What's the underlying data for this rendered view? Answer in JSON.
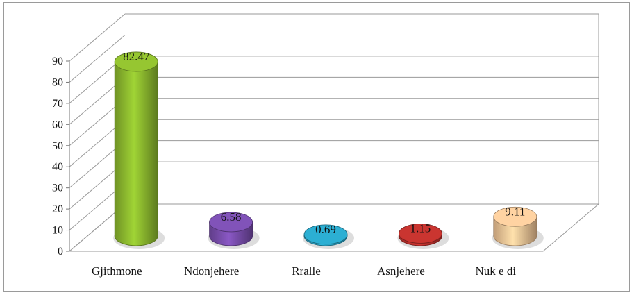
{
  "chart_data": {
    "type": "bar",
    "style": "3d-cylinder",
    "title": "",
    "xlabel": "",
    "ylabel": "",
    "ylim": [
      0,
      90
    ],
    "yticks": [
      0,
      10,
      20,
      30,
      40,
      50,
      60,
      70,
      80,
      90
    ],
    "grid": true,
    "categories": [
      "Gjithmone",
      "Ndonjehere",
      "Rralle",
      "Asnjehere",
      "Nuk e di"
    ],
    "values": [
      82.47,
      6.58,
      0.69,
      1.15,
      9.11
    ],
    "data_labels": [
      "82.47",
      "6.58",
      "0.69",
      "1.15",
      "9.11"
    ],
    "colors": [
      "#8fbd2f",
      "#7b4fb0",
      "#2aa7c9",
      "#c0322e",
      "#f8c99a"
    ]
  }
}
